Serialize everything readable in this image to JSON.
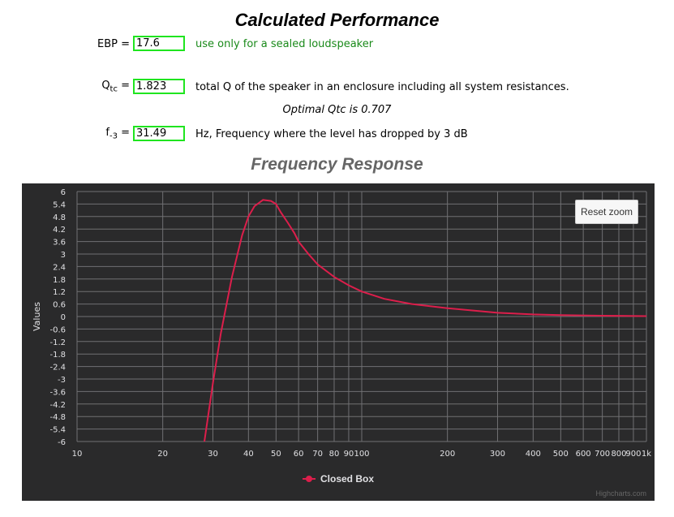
{
  "header": {
    "title": "Calculated Performance"
  },
  "ebp": {
    "label": "EBP =",
    "value": "17.6",
    "description": "use only for a sealed loudspeaker"
  },
  "qtc": {
    "label_main": "Q",
    "label_sub": "tc",
    "label_eq": " =",
    "value": "1.823",
    "description": "total Q of the speaker in an enclosure including all system resistances."
  },
  "optimal_note": "Optimal Qtc is 0.707",
  "f3": {
    "label_main": "f",
    "label_sub": "-3",
    "label_eq": " =",
    "value": "31.49",
    "description": "Hz,  Frequency where the level has dropped by 3 dB"
  },
  "chart_title": "Frequency Response",
  "reset_zoom_label": "Reset zoom",
  "credits": "Highcharts.com",
  "colors": {
    "series": "#dc1e4b",
    "background": "#2a2a2b",
    "grid": "#707073",
    "input_border": "#1fe51f"
  },
  "chart_data": {
    "type": "line",
    "title": "Frequency Response",
    "xlabel": "",
    "ylabel": "Values",
    "x_scale": "log",
    "xlim": [
      10,
      1000
    ],
    "ylim": [
      -6,
      6
    ],
    "x_ticks": [
      10,
      20,
      30,
      40,
      50,
      60,
      70,
      80,
      90,
      100,
      200,
      300,
      400,
      500,
      600,
      700,
      800,
      900,
      1000
    ],
    "x_tick_labels": [
      "10",
      "20",
      "30",
      "40",
      "50",
      "60",
      "70",
      "80",
      "90",
      "100",
      "200",
      "300",
      "400",
      "500",
      "600",
      "700",
      "800",
      "900",
      "1k"
    ],
    "y_ticks": [
      6,
      5.4,
      4.8,
      4.2,
      3.6,
      3,
      2.4,
      1.8,
      1.2,
      0.6,
      0,
      -0.6,
      -1.2,
      -1.8,
      -2.4,
      -3,
      -3.6,
      -4.2,
      -4.8,
      -5.4,
      -6
    ],
    "y_tick_labels": [
      "6",
      "5.4",
      "4.8",
      "4.2",
      "3.6",
      "3",
      "2.4",
      "1.8",
      "1.2",
      "0.6",
      "0",
      "-0.6",
      "-1.2",
      "-1.8",
      "-2.4",
      "-3",
      "-3.6",
      "-4.2",
      "-4.8",
      "-5.4",
      "-6"
    ],
    "grid": true,
    "legend": "bottom-center",
    "series": [
      {
        "name": "Closed Box",
        "x": [
          28,
          30,
          32,
          35,
          38,
          40,
          42,
          45,
          48,
          50,
          52,
          55,
          58,
          60,
          65,
          70,
          80,
          90,
          100,
          120,
          150,
          200,
          300,
          400,
          500,
          700,
          1000
        ],
        "values": [
          -6,
          -3.2,
          -0.8,
          1.9,
          3.9,
          4.8,
          5.3,
          5.6,
          5.55,
          5.4,
          5.0,
          4.5,
          4.0,
          3.6,
          3.0,
          2.5,
          1.9,
          1.5,
          1.2,
          0.85,
          0.6,
          0.4,
          0.18,
          0.1,
          0.07,
          0.04,
          0.02
        ]
      }
    ]
  }
}
